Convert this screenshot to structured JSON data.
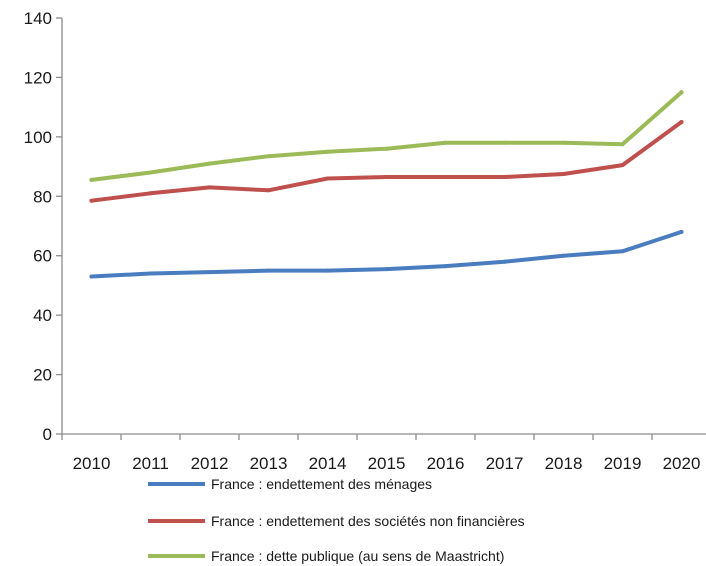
{
  "chart_data": {
    "type": "line",
    "title": "",
    "xlabel": "",
    "ylabel": "",
    "categories": [
      "2010",
      "2011",
      "2012",
      "2013",
      "2014",
      "2015",
      "2016",
      "2017",
      "2018",
      "2019",
      "2020"
    ],
    "ylim": [
      0,
      140
    ],
    "yticks": [
      0,
      20,
      40,
      60,
      80,
      100,
      120,
      140
    ],
    "grid": false,
    "legend_position": "bottom",
    "series": [
      {
        "name": "France : endettement des ménages",
        "color": "#4a7dbf",
        "x": [
          2010,
          2011,
          2012,
          2013,
          2014,
          2015,
          2016,
          2017,
          2018,
          2019,
          2020
        ],
        "values": [
          53,
          54,
          54.5,
          55,
          55,
          55.5,
          56.5,
          58,
          60,
          61.5,
          68
        ]
      },
      {
        "name": "France : endettement des sociétés non financières",
        "color": "#c0504d",
        "x": [
          2010,
          2011,
          2012,
          2013,
          2014,
          2015,
          2016,
          2017,
          2018,
          2019,
          2020
        ],
        "values": [
          78.5,
          81,
          83,
          82,
          86,
          86.5,
          86.5,
          86.5,
          87.5,
          90.5,
          105
        ]
      },
      {
        "name": "France : dette publique (au sens de Maastricht)",
        "color": "#9bbb59",
        "x": [
          2010,
          2011,
          2012,
          2013,
          2014,
          2015,
          2016,
          2017,
          2018,
          2019,
          2020
        ],
        "values": [
          85.5,
          88,
          91,
          93.5,
          95,
          96,
          98,
          98,
          98,
          97.5,
          115
        ]
      }
    ]
  }
}
